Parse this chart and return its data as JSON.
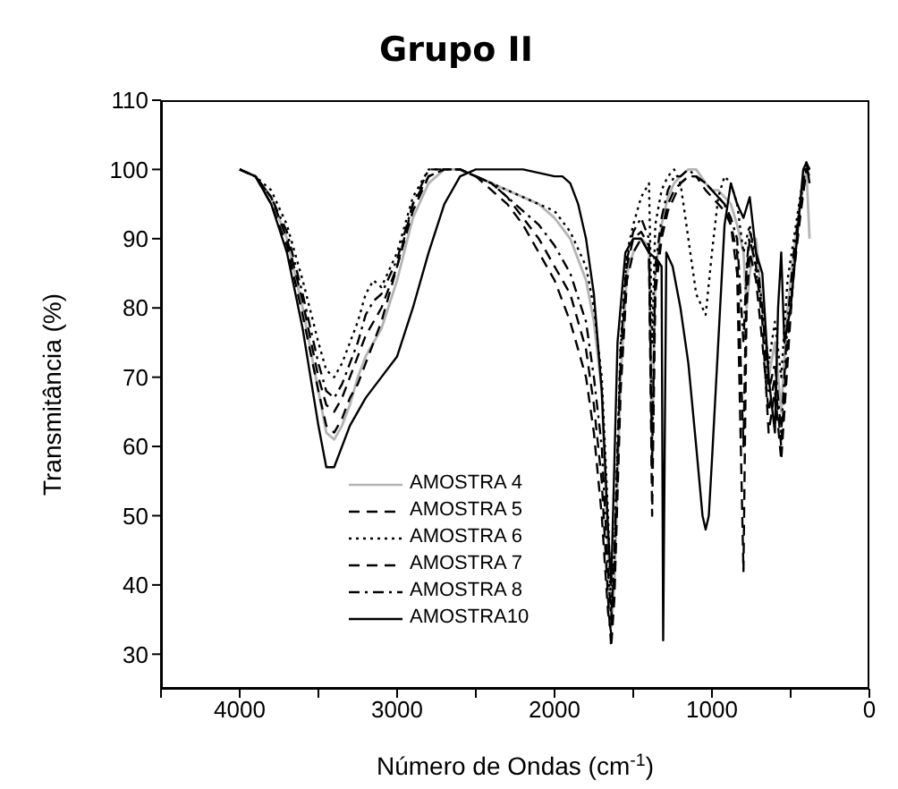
{
  "chart_data": {
    "type": "line",
    "title": "Grupo II",
    "xlabel": "Número de Ondas (cm$^{-1}$)",
    "ylabel": "Transmitância (%)",
    "xlim": [
      4500,
      0
    ],
    "xticks": [
      {
        "value": 4500,
        "label": null
      },
      4000,
      {
        "value": 3500,
        "label": null
      },
      3000,
      {
        "value": 2500,
        "label": null
      },
      2000,
      {
        "value": 1500,
        "label": null
      },
      1000,
      {
        "value": 500,
        "label": null
      },
      0
    ],
    "ylim": [
      25,
      110
    ],
    "yticks": [
      30,
      40,
      50,
      60,
      70,
      80,
      90,
      100,
      110
    ],
    "legend": "bottom",
    "x": [
      4000,
      3900,
      3800,
      3700,
      3600,
      3500,
      3450,
      3400,
      3350,
      3300,
      3250,
      3200,
      3150,
      3100,
      3000,
      2900,
      2800,
      2700,
      2600,
      2500,
      2400,
      2300,
      2200,
      2100,
      2000,
      1900,
      1800,
      1750,
      1700,
      1660,
      1640,
      1620,
      1580,
      1540,
      1500,
      1450,
      1400,
      1380,
      1360,
      1320,
      1280,
      1240,
      1200,
      1150,
      1100,
      1040,
      1000,
      960,
      920,
      880,
      840,
      800,
      780,
      760,
      720,
      680,
      640,
      600,
      560,
      520,
      480,
      440,
      400,
      380
    ],
    "series": [
      {
        "name": "AMOSTRA 4",
        "color": "#b4b4b4",
        "line_style": "solid",
        "values": [
          100,
          99,
          96,
          90,
          80,
          68,
          62,
          61,
          63,
          66,
          70,
          73,
          75,
          77,
          84,
          93,
          98,
          100,
          100,
          99,
          98,
          97,
          96,
          95,
          93,
          90,
          84,
          78,
          68,
          45,
          34,
          40,
          70,
          85,
          88,
          90,
          89,
          60,
          85,
          92,
          96,
          98,
          99,
          100,
          100,
          98,
          97,
          97,
          96,
          95,
          92,
          88,
          80,
          85,
          90,
          80,
          70,
          75,
          65,
          80,
          88,
          95,
          100,
          90
        ]
      },
      {
        "name": "AMOSTRA 5",
        "color": "#000000",
        "line_style": "dashed",
        "values": [
          100,
          99,
          95,
          89,
          79,
          68,
          63,
          62,
          64,
          67,
          69,
          72,
          75,
          78,
          86,
          94,
          99,
          100,
          100,
          99,
          98,
          96,
          93,
          90,
          86,
          82,
          74,
          66,
          55,
          38,
          31,
          38,
          68,
          84,
          88,
          90,
          88,
          50,
          82,
          90,
          94,
          96,
          98,
          99,
          99,
          98,
          97,
          96,
          95,
          92,
          85,
          42,
          80,
          88,
          84,
          75,
          65,
          70,
          60,
          75,
          85,
          93,
          100,
          99
        ]
      },
      {
        "name": "AMOSTRA 6",
        "color": "#000000",
        "line_style": "dotted",
        "values": [
          100,
          99,
          97,
          92,
          84,
          75,
          71,
          70,
          72,
          75,
          78,
          82,
          84,
          83,
          88,
          96,
          100,
          100,
          100,
          99,
          98,
          97,
          96,
          95,
          94,
          91,
          86,
          80,
          70,
          50,
          36,
          45,
          75,
          88,
          92,
          96,
          98,
          75,
          92,
          97,
          99,
          100,
          98,
          90,
          82,
          79,
          88,
          96,
          99,
          98,
          95,
          88,
          90,
          92,
          85,
          80,
          72,
          78,
          70,
          84,
          90,
          96,
          101,
          100
        ]
      },
      {
        "name": "AMOSTRA 7",
        "color": "#000000",
        "line_style": "dashed",
        "values": [
          100,
          99,
          96,
          90,
          81,
          70,
          66,
          65,
          67,
          70,
          73,
          76,
          78,
          80,
          86,
          95,
          99,
          100,
          100,
          99,
          97,
          95,
          92,
          88,
          84,
          78,
          70,
          62,
          50,
          36,
          33,
          42,
          72,
          86,
          90,
          91,
          89,
          55,
          84,
          91,
          95,
          97,
          98,
          99,
          99,
          97,
          96,
          95,
          94,
          92,
          88,
          60,
          85,
          90,
          86,
          78,
          62,
          68,
          58,
          72,
          86,
          94,
          100,
          100
        ]
      },
      {
        "name": "AMOSTRA 8",
        "color": "#000000",
        "line_style": "dashdot",
        "values": [
          100,
          99,
          96,
          91,
          82,
          72,
          68,
          67,
          69,
          72,
          75,
          79,
          81,
          82,
          87,
          95,
          100,
          100,
          100,
          99,
          98,
          96,
          94,
          92,
          89,
          85,
          78,
          70,
          60,
          42,
          35,
          44,
          74,
          87,
          91,
          93,
          90,
          58,
          86,
          93,
          97,
          99,
          99,
          100,
          99,
          98,
          97,
          96,
          95,
          93,
          90,
          75,
          86,
          91,
          88,
          80,
          68,
          72,
          62,
          78,
          88,
          95,
          101,
          100
        ]
      },
      {
        "name": "AMOSTRA10",
        "color": "#000000",
        "line_style": "solid",
        "x": [
          4000,
          3900,
          3800,
          3700,
          3600,
          3500,
          3450,
          3400,
          3300,
          3200,
          3100,
          3000,
          2900,
          2800,
          2700,
          2600,
          2500,
          2400,
          2200,
          2000,
          1950,
          1900,
          1850,
          1800,
          1750,
          1700,
          1660,
          1640,
          1600,
          1550,
          1500,
          1450,
          1400,
          1350,
          1320,
          1310,
          1290,
          1250,
          1200,
          1150,
          1100,
          1060,
          1040,
          1020,
          1000,
          960,
          920,
          880,
          840,
          800,
          760,
          720,
          680,
          640,
          600,
          580,
          560,
          540,
          500,
          460,
          420,
          400,
          380
        ],
        "values": [
          100,
          99,
          95,
          88,
          77,
          63,
          57,
          57,
          63,
          67,
          70,
          73,
          80,
          88,
          95,
          99,
          100,
          100,
          100,
          99,
          99,
          98,
          95,
          90,
          82,
          68,
          48,
          40,
          75,
          88,
          90,
          90,
          88,
          87,
          86,
          32,
          88,
          86,
          80,
          72,
          60,
          50,
          48,
          50,
          58,
          75,
          92,
          98,
          95,
          93,
          96,
          88,
          85,
          70,
          62,
          80,
          88,
          75,
          80,
          90,
          100,
          101,
          98
        ]
      }
    ]
  }
}
